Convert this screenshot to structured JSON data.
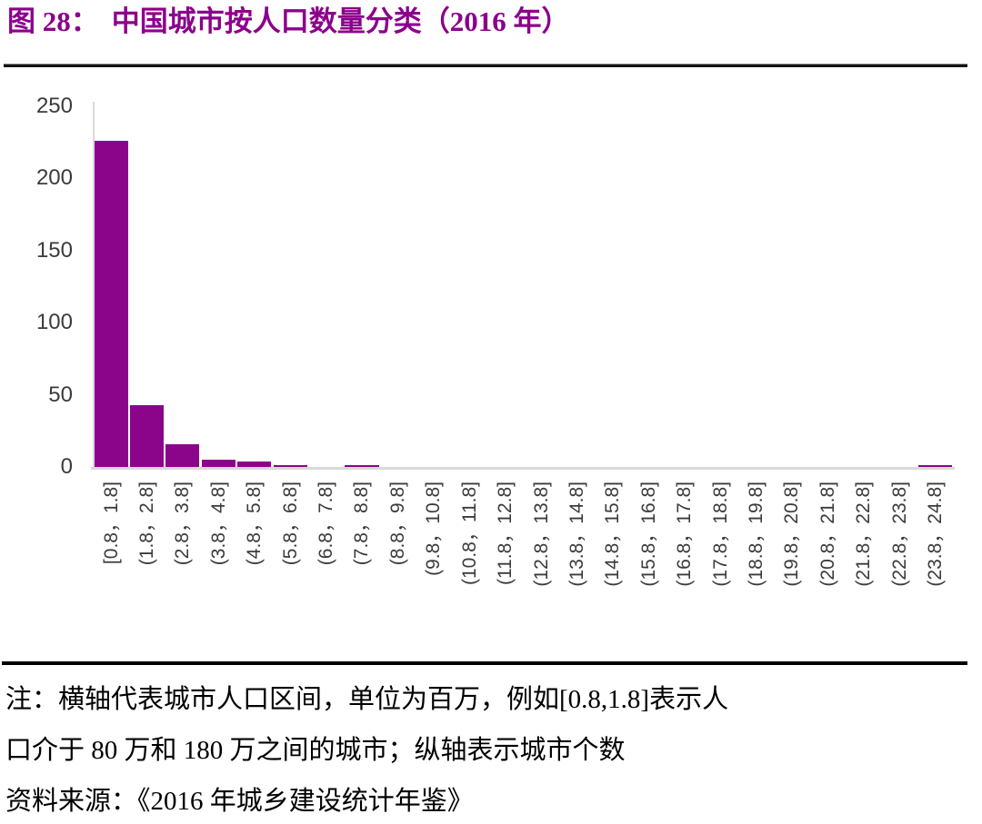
{
  "header": {
    "prefix": "图 28：",
    "title": "中国城市按人口数量分类（2016 年）",
    "accent_color": "#8B008B"
  },
  "chart_data": {
    "type": "bar",
    "title": "中国城市按人口数量分类（2016 年）",
    "xlabel": "",
    "ylabel": "",
    "categories": [
      "[0.8，1.8]",
      "(1.8，2.8]",
      "(2.8，3.8]",
      "(3.8，4.8]",
      "(4.8，5.8]",
      "(5.8，6.8]",
      "(6.8，7.8]",
      "(7.8，8.8]",
      "(8.8，9.8]",
      "(9.8，10.8]",
      "(10.8，11.8]",
      "(11.8，12.8]",
      "(12.8，13.8]",
      "(13.8，14.8]",
      "(14.8，15.8]",
      "(15.8，16.8]",
      "(16.8，17.8]",
      "(17.8，18.8]",
      "(18.8，19.8]",
      "(19.8，20.8]",
      "(20.8，21.8]",
      "(21.8，22.8]",
      "(22.8，23.8]",
      "(23.8，24.8]"
    ],
    "values": [
      226,
      43,
      16,
      5,
      4,
      1,
      0,
      1,
      0,
      0,
      0,
      0,
      0,
      0,
      0,
      0,
      0,
      0,
      0,
      0,
      0,
      0,
      0,
      1
    ],
    "ylim": [
      0,
      250
    ],
    "yticks": [
      0,
      50,
      100,
      150,
      200,
      250
    ],
    "bar_color": "#8B058B",
    "axis_line_color": "#d9d9d9",
    "tick_label_color": "#3b3b3b",
    "grid": false,
    "legend": "none"
  },
  "notes": {
    "line1": "注：横轴代表城市人口区间，单位为百万，例如[0.8,1.8]表示人",
    "line2": "口介于 80 万和 180 万之间的城市；纵轴表示城市个数",
    "line3": "资料来源：《2016 年城乡建设统计年鉴》"
  }
}
